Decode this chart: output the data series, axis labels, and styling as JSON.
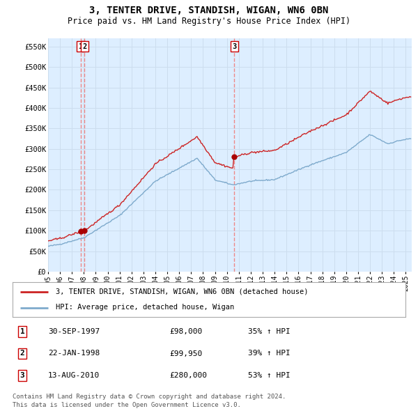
{
  "title": "3, TENTER DRIVE, STANDISH, WIGAN, WN6 0BN",
  "subtitle": "Price paid vs. HM Land Registry's House Price Index (HPI)",
  "ylim": [
    0,
    570000
  ],
  "yticks": [
    0,
    50000,
    100000,
    150000,
    200000,
    250000,
    300000,
    350000,
    400000,
    450000,
    500000,
    550000
  ],
  "ytick_labels": [
    "£0",
    "£50K",
    "£100K",
    "£150K",
    "£200K",
    "£250K",
    "£300K",
    "£350K",
    "£400K",
    "£450K",
    "£500K",
    "£550K"
  ],
  "hpi_color": "#7eaacc",
  "price_color": "#cc2222",
  "marker_color": "#aa0000",
  "vline_color": "#ee8888",
  "plot_bg_color": "#ddeeff",
  "purchases": [
    {
      "label": "1",
      "date_num": 1997.747,
      "price": 98000,
      "date_str": "30-SEP-1997",
      "pct": "35%"
    },
    {
      "label": "2",
      "date_num": 1998.055,
      "price": 99950,
      "date_str": "22-JAN-1998",
      "pct": "39%"
    },
    {
      "label": "3",
      "date_num": 2010.619,
      "price": 280000,
      "date_str": "13-AUG-2010",
      "pct": "53%"
    }
  ],
  "legend_line1": "3, TENTER DRIVE, STANDISH, WIGAN, WN6 0BN (detached house)",
  "legend_line2": "HPI: Average price, detached house, Wigan",
  "footer1": "Contains HM Land Registry data © Crown copyright and database right 2024.",
  "footer2": "This data is licensed under the Open Government Licence v3.0.",
  "background_color": "#ffffff",
  "grid_color": "#ccddee"
}
